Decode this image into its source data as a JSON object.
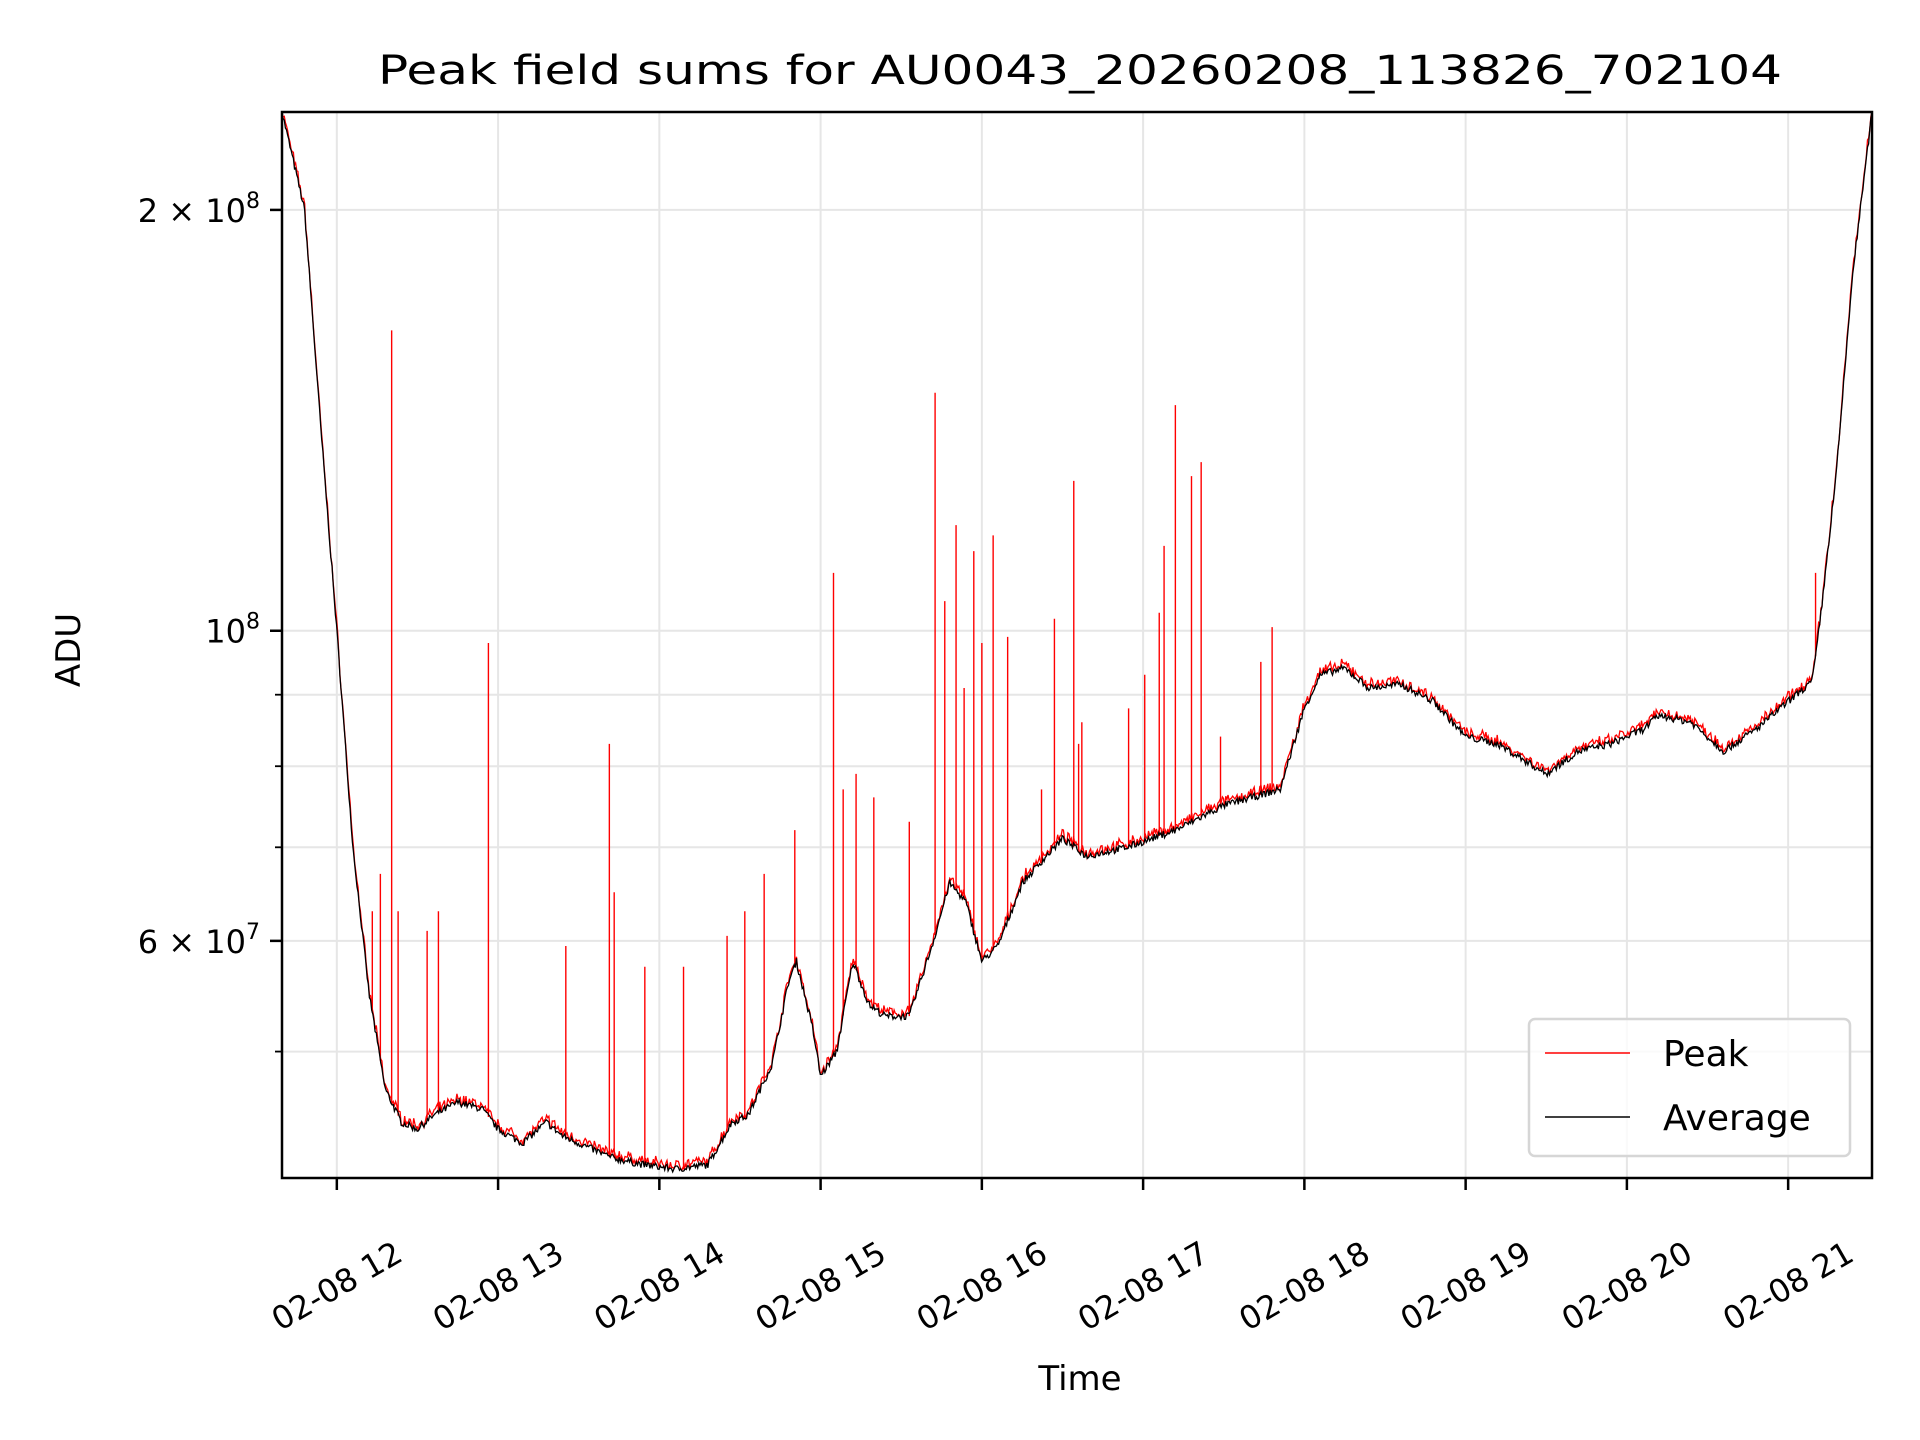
{
  "chart_data": {
    "type": "line",
    "title": "Peak field sums for AU0043_20260208_113826_702104",
    "xlabel": "Time",
    "ylabel": "ADU",
    "yscale": "log",
    "xlim_hours": [
      11.66,
      21.52
    ],
    "ylim": [
      40600000,
      235000000
    ],
    "grid": true,
    "x_ticks": [
      {
        "hour": 12,
        "label": "02-08 12"
      },
      {
        "hour": 13,
        "label": "02-08 13"
      },
      {
        "hour": 14,
        "label": "02-08 14"
      },
      {
        "hour": 15,
        "label": "02-08 15"
      },
      {
        "hour": 16,
        "label": "02-08 16"
      },
      {
        "hour": 17,
        "label": "02-08 17"
      },
      {
        "hour": 18,
        "label": "02-08 18"
      },
      {
        "hour": 19,
        "label": "02-08 19"
      },
      {
        "hour": 20,
        "label": "02-08 20"
      },
      {
        "hour": 21,
        "label": "02-08 21"
      }
    ],
    "y_ticks": [
      {
        "value": 200000000,
        "mantissa": "2",
        "times": "×",
        "base": "10",
        "exp": "8"
      },
      {
        "value": 100000000,
        "mantissa": "",
        "times": "",
        "base": "10",
        "exp": "8"
      },
      {
        "value": 60000000,
        "mantissa": "6",
        "times": "×",
        "base": "10",
        "exp": "7"
      }
    ],
    "y_minor_grid": [
      50000000,
      70000000,
      80000000,
      90000000
    ],
    "legend": {
      "placement": "lower-right",
      "entries": [
        {
          "label": "Peak",
          "color": "#ff0000"
        },
        {
          "label": "Average",
          "color": "#000000"
        }
      ]
    },
    "series": [
      {
        "name": "Average",
        "color": "#000000",
        "unit": "1e7 ADU",
        "points": [
          [
            11.66,
            23.5
          ],
          [
            11.8,
            20
          ],
          [
            11.9,
            14
          ],
          [
            12.0,
            10
          ],
          [
            12.1,
            7
          ],
          [
            12.2,
            5.5
          ],
          [
            12.3,
            4.7
          ],
          [
            12.4,
            4.45
          ],
          [
            12.5,
            4.4
          ],
          [
            12.6,
            4.5
          ],
          [
            12.75,
            4.6
          ],
          [
            12.9,
            4.55
          ],
          [
            13.0,
            4.4
          ],
          [
            13.15,
            4.3
          ],
          [
            13.3,
            4.45
          ],
          [
            13.4,
            4.35
          ],
          [
            13.5,
            4.3
          ],
          [
            13.7,
            4.2
          ],
          [
            13.9,
            4.15
          ],
          [
            14.1,
            4.12
          ],
          [
            14.3,
            4.15
          ],
          [
            14.45,
            4.45
          ],
          [
            14.55,
            4.5
          ],
          [
            14.7,
            4.9
          ],
          [
            14.8,
            5.6
          ],
          [
            14.85,
            5.8
          ],
          [
            14.95,
            5.2
          ],
          [
            15.0,
            4.8
          ],
          [
            15.1,
            5.0
          ],
          [
            15.2,
            5.8
          ],
          [
            15.3,
            5.4
          ],
          [
            15.4,
            5.3
          ],
          [
            15.55,
            5.3
          ],
          [
            15.7,
            6.0
          ],
          [
            15.8,
            6.6
          ],
          [
            15.9,
            6.4
          ],
          [
            16.0,
            5.8
          ],
          [
            16.1,
            5.95
          ],
          [
            16.25,
            6.6
          ],
          [
            16.4,
            6.9
          ],
          [
            16.5,
            7.1
          ],
          [
            16.65,
            6.9
          ],
          [
            16.9,
            7.0
          ],
          [
            17.2,
            7.2
          ],
          [
            17.5,
            7.5
          ],
          [
            17.85,
            7.7
          ],
          [
            18.0,
            8.8
          ],
          [
            18.1,
            9.3
          ],
          [
            18.25,
            9.4
          ],
          [
            18.4,
            9.1
          ],
          [
            18.6,
            9.15
          ],
          [
            18.8,
            8.9
          ],
          [
            19.0,
            8.4
          ],
          [
            19.2,
            8.3
          ],
          [
            19.5,
            7.9
          ],
          [
            19.7,
            8.2
          ],
          [
            19.9,
            8.3
          ],
          [
            20.1,
            8.5
          ],
          [
            20.2,
            8.7
          ],
          [
            20.4,
            8.6
          ],
          [
            20.6,
            8.2
          ],
          [
            20.8,
            8.5
          ],
          [
            21.0,
            8.9
          ],
          [
            21.15,
            9.2
          ],
          [
            21.2,
            10.2
          ],
          [
            21.3,
            13
          ],
          [
            21.4,
            18
          ],
          [
            21.52,
            23.5
          ]
        ]
      },
      {
        "name": "Peak",
        "color": "#ff0000",
        "unit": "1e7 ADU",
        "note_spikes": "peak follows average closely except for these spikes",
        "spikes": [
          [
            12.22,
            6.3
          ],
          [
            12.27,
            6.7
          ],
          [
            12.34,
            16.4
          ],
          [
            12.38,
            6.3
          ],
          [
            12.56,
            6.1
          ],
          [
            12.63,
            6.3
          ],
          [
            12.94,
            9.8
          ],
          [
            13.42,
            5.95
          ],
          [
            13.69,
            8.3
          ],
          [
            13.72,
            6.5
          ],
          [
            13.91,
            5.75
          ],
          [
            14.15,
            5.75
          ],
          [
            14.42,
            6.05
          ],
          [
            14.53,
            6.3
          ],
          [
            14.65,
            6.7
          ],
          [
            14.84,
            7.2
          ],
          [
            15.08,
            11.0
          ],
          [
            15.14,
            7.7
          ],
          [
            15.22,
            7.9
          ],
          [
            15.33,
            7.6
          ],
          [
            15.55,
            7.3
          ],
          [
            15.71,
            14.8
          ],
          [
            15.77,
            10.5
          ],
          [
            15.84,
            11.9
          ],
          [
            15.89,
            9.1
          ],
          [
            15.95,
            11.4
          ],
          [
            16.0,
            9.8
          ],
          [
            16.07,
            11.7
          ],
          [
            16.16,
            9.9
          ],
          [
            16.37,
            7.7
          ],
          [
            16.45,
            10.2
          ],
          [
            16.57,
            12.8
          ],
          [
            16.6,
            8.3
          ],
          [
            16.62,
            8.6
          ],
          [
            16.91,
            8.8
          ],
          [
            17.01,
            9.3
          ],
          [
            17.1,
            10.3
          ],
          [
            17.13,
            11.5
          ],
          [
            17.2,
            14.5
          ],
          [
            17.3,
            12.9
          ],
          [
            17.36,
            13.2
          ],
          [
            17.48,
            8.4
          ],
          [
            17.73,
            9.5
          ],
          [
            17.8,
            10.06
          ],
          [
            21.17,
            11.0
          ]
        ]
      }
    ]
  }
}
